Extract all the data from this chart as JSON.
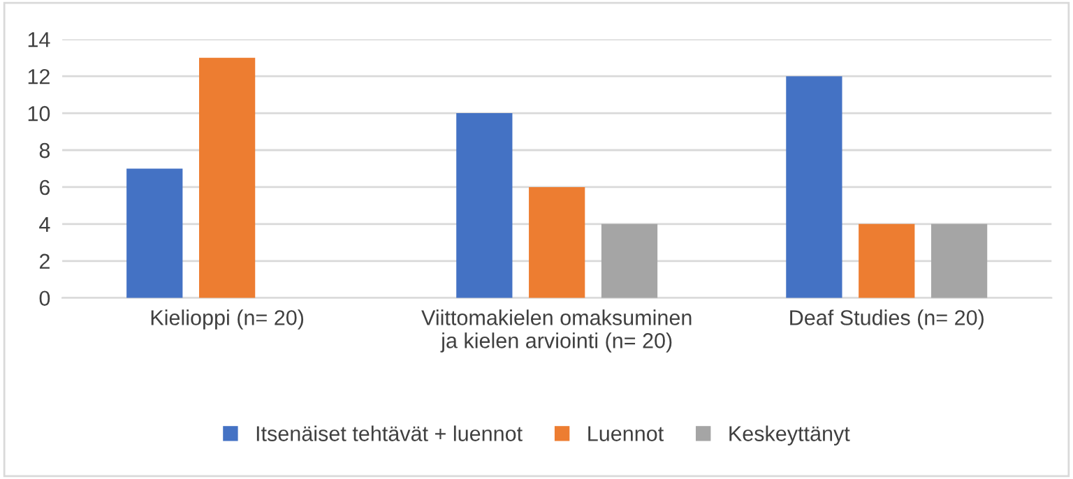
{
  "chart_data": {
    "type": "bar",
    "categories": [
      "Kielioppi (n= 20)",
      "Viittomakielen omaksuminen\nja kielen arviointi (n= 20)",
      "Deaf Studies (n= 20)"
    ],
    "series": [
      {
        "name": "Itsenäiset tehtävät + luennot",
        "color": "#4472c4",
        "values": [
          7,
          10,
          12
        ]
      },
      {
        "name": "Luennot",
        "color": "#ed7d31",
        "values": [
          13,
          6,
          4
        ]
      },
      {
        "name": "Keskeyttänyt",
        "color": "#a5a5a5",
        "values": [
          0,
          4,
          4
        ]
      }
    ],
    "ylim": [
      0,
      14
    ],
    "yticks": [
      0,
      2,
      4,
      6,
      8,
      10,
      12,
      14
    ],
    "grid": "y",
    "legend": "bottom"
  }
}
